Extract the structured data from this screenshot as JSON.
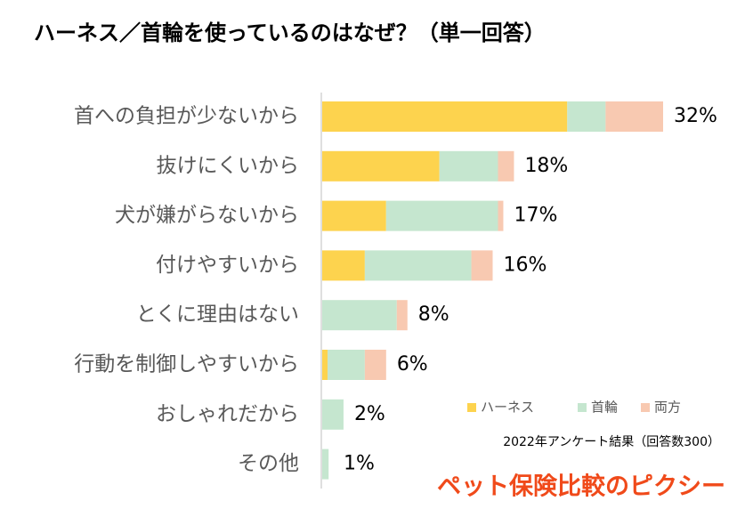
{
  "chart_data": {
    "type": "stacked_bar_horizontal",
    "title": "ハーネス／首輪を使っているのはなぜ？（単一回答）",
    "categories": [
      "首への負担が少ないから",
      "抜けにくいから",
      "犬が嫌がらないから",
      "付けやすいから",
      "とくに理由はない",
      "行動を制御しやすいから",
      "おしゃれだから",
      "その他"
    ],
    "series": [
      {
        "name": "ハーネス",
        "color": "#fdd34e",
        "values": [
          23,
          11,
          6,
          4,
          0,
          0.5,
          0,
          0
        ]
      },
      {
        "name": "首輪",
        "color": "#c5e6cf",
        "values": [
          3.6,
          5.5,
          10.5,
          10,
          7,
          3.5,
          2,
          0.6
        ]
      },
      {
        "name": "両方",
        "color": "#f8c9b1",
        "values": [
          5.4,
          1.5,
          0.5,
          2,
          1,
          2,
          0,
          0
        ]
      }
    ],
    "totals": [
      32,
      18,
      17,
      16,
      8,
      6,
      2,
      1
    ],
    "total_labels": [
      "32%",
      "18%",
      "17%",
      "16%",
      "8%",
      "6%",
      "2%",
      "1%"
    ],
    "legend": "bottom-right",
    "note": "2022年アンケート結果（回答数300）",
    "brand": "ペット保険比較のピクシー"
  }
}
